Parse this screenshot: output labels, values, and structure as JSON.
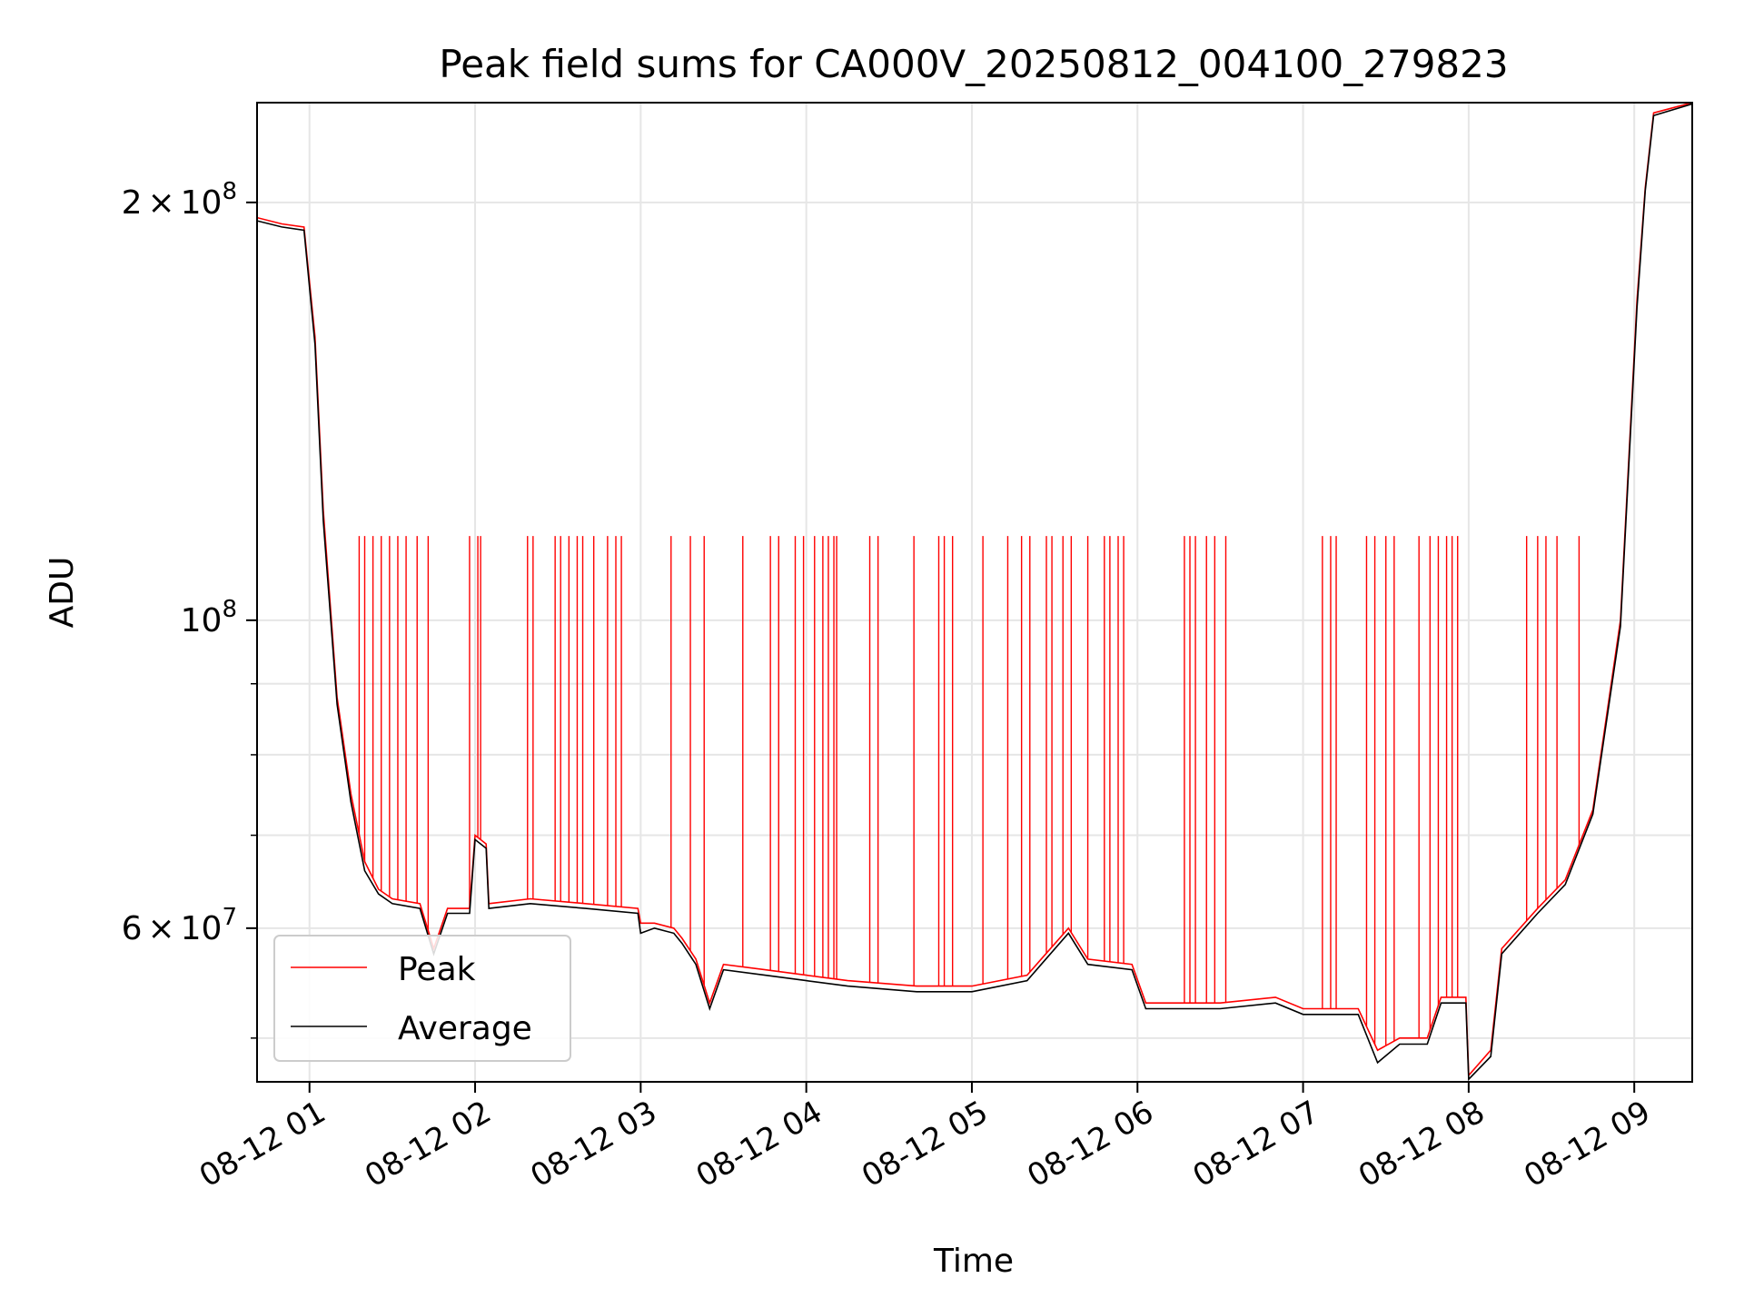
{
  "chart_data": {
    "type": "line",
    "title": "Peak field sums for CA000V_20250812_004100_279823",
    "xlabel": "Time",
    "ylabel": "ADU",
    "yscale": "log",
    "ylim": [
      46500000,
      236000000
    ],
    "xlim": [
      "2025-08-12 00:41",
      "2025-08-12 09:21"
    ],
    "grid": true,
    "legend_position": "lower-left",
    "x_ticks": [
      {
        "value": "2025-08-12 01:00",
        "label": "08-12 01"
      },
      {
        "value": "2025-08-12 02:00",
        "label": "08-12 02"
      },
      {
        "value": "2025-08-12 03:00",
        "label": "08-12 03"
      },
      {
        "value": "2025-08-12 04:00",
        "label": "08-12 04"
      },
      {
        "value": "2025-08-12 05:00",
        "label": "08-12 05"
      },
      {
        "value": "2025-08-12 06:00",
        "label": "08-12 06"
      },
      {
        "value": "2025-08-12 07:00",
        "label": "08-12 07"
      },
      {
        "value": "2025-08-12 08:00",
        "label": "08-12 08"
      },
      {
        "value": "2025-08-12 09:00",
        "label": "08-12 09"
      }
    ],
    "y_major_ticks": [
      {
        "value": 60000000,
        "mantissa": "6",
        "exponent": "7"
      },
      {
        "value": 100000000,
        "mantissa": "",
        "exponent": "8"
      },
      {
        "value": 200000000,
        "mantissa": "2",
        "exponent": "8"
      }
    ],
    "y_minor_ticks": [
      50000000,
      70000000,
      80000000,
      90000000
    ],
    "tick_base": "10",
    "tick_times": "×",
    "series": [
      {
        "name": "Peak",
        "color": "#ff0000",
        "points": [
          [
            "2025-08-12 00:41",
            195000000
          ],
          [
            "2025-08-12 00:50",
            193000000
          ],
          [
            "2025-08-12 00:58",
            192000000
          ],
          [
            "2025-08-12 01:02",
            160000000
          ],
          [
            "2025-08-12 01:05",
            120000000
          ],
          [
            "2025-08-12 01:10",
            88000000
          ],
          [
            "2025-08-12 01:15",
            75000000
          ],
          [
            "2025-08-12 01:20",
            67000000
          ],
          [
            "2025-08-12 01:25",
            64000000
          ],
          [
            "2025-08-12 01:30",
            63000000
          ],
          [
            "2025-08-12 01:40",
            62500000
          ],
          [
            "2025-08-12 01:45",
            58000000
          ],
          [
            "2025-08-12 01:50",
            62000000
          ],
          [
            "2025-08-12 01:58",
            62000000
          ],
          [
            "2025-08-12 02:00",
            70000000
          ],
          [
            "2025-08-12 02:04",
            69000000
          ],
          [
            "2025-08-12 02:05",
            62500000
          ],
          [
            "2025-08-12 02:20",
            63000000
          ],
          [
            "2025-08-12 02:40",
            62500000
          ],
          [
            "2025-08-12 02:59",
            62000000
          ],
          [
            "2025-08-12 03:00",
            60500000
          ],
          [
            "2025-08-12 03:05",
            60500000
          ],
          [
            "2025-08-12 03:12",
            60000000
          ],
          [
            "2025-08-12 03:15",
            59000000
          ],
          [
            "2025-08-12 03:20",
            57000000
          ],
          [
            "2025-08-12 03:25",
            53000000
          ],
          [
            "2025-08-12 03:30",
            56500000
          ],
          [
            "2025-08-12 03:45",
            56000000
          ],
          [
            "2025-08-12 04:00",
            55500000
          ],
          [
            "2025-08-12 04:15",
            55000000
          ],
          [
            "2025-08-12 04:40",
            54500000
          ],
          [
            "2025-08-12 05:00",
            54500000
          ],
          [
            "2025-08-12 05:20",
            55500000
          ],
          [
            "2025-08-12 05:35",
            60000000
          ],
          [
            "2025-08-12 05:42",
            57000000
          ],
          [
            "2025-08-12 05:58",
            56500000
          ],
          [
            "2025-08-12 06:03",
            53000000
          ],
          [
            "2025-08-12 06:30",
            53000000
          ],
          [
            "2025-08-12 06:50",
            53500000
          ],
          [
            "2025-08-12 07:00",
            52500000
          ],
          [
            "2025-08-12 07:20",
            52500000
          ],
          [
            "2025-08-12 07:27",
            49000000
          ],
          [
            "2025-08-12 07:35",
            50000000
          ],
          [
            "2025-08-12 07:45",
            50000000
          ],
          [
            "2025-08-12 07:50",
            53500000
          ],
          [
            "2025-08-12 07:59",
            53500000
          ],
          [
            "2025-08-12 08:00",
            47000000
          ],
          [
            "2025-08-12 08:08",
            49000000
          ],
          [
            "2025-08-12 08:12",
            58000000
          ],
          [
            "2025-08-12 08:25",
            62000000
          ],
          [
            "2025-08-12 08:35",
            65000000
          ],
          [
            "2025-08-12 08:45",
            73000000
          ],
          [
            "2025-08-12 08:55",
            100000000
          ],
          [
            "2025-08-12 09:01",
            170000000
          ],
          [
            "2025-08-12 09:04",
            205000000
          ],
          [
            "2025-08-12 09:07",
            232000000
          ],
          [
            "2025-08-12 09:21",
            236000000
          ]
        ],
        "spikes": {
          "value": 115000000,
          "times": [
            "2025-08-12 01:18",
            "2025-08-12 01:20",
            "2025-08-12 01:23",
            "2025-08-12 01:26",
            "2025-08-12 01:29",
            "2025-08-12 01:32",
            "2025-08-12 01:35",
            "2025-08-12 01:39",
            "2025-08-12 01:43",
            "2025-08-12 01:58",
            "2025-08-12 02:01",
            "2025-08-12 02:02",
            "2025-08-12 02:19",
            "2025-08-12 02:21",
            "2025-08-12 02:29",
            "2025-08-12 02:31",
            "2025-08-12 02:34",
            "2025-08-12 02:37",
            "2025-08-12 02:39",
            "2025-08-12 02:43",
            "2025-08-12 02:48",
            "2025-08-12 02:51",
            "2025-08-12 02:53",
            "2025-08-12 03:11",
            "2025-08-12 03:18",
            "2025-08-12 03:23",
            "2025-08-12 03:37",
            "2025-08-12 03:47",
            "2025-08-12 03:50",
            "2025-08-12 03:56",
            "2025-08-12 03:59",
            "2025-08-12 04:03",
            "2025-08-12 04:06",
            "2025-08-12 04:08",
            "2025-08-12 04:10",
            "2025-08-12 04:11",
            "2025-08-12 04:23",
            "2025-08-12 04:26",
            "2025-08-12 04:39",
            "2025-08-12 04:48",
            "2025-08-12 04:50",
            "2025-08-12 04:53",
            "2025-08-12 05:04",
            "2025-08-12 05:13",
            "2025-08-12 05:18",
            "2025-08-12 05:21",
            "2025-08-12 05:27",
            "2025-08-12 05:29",
            "2025-08-12 05:33",
            "2025-08-12 05:36",
            "2025-08-12 05:42",
            "2025-08-12 05:48",
            "2025-08-12 05:50",
            "2025-08-12 05:53",
            "2025-08-12 05:55",
            "2025-08-12 06:17",
            "2025-08-12 06:19",
            "2025-08-12 06:21",
            "2025-08-12 06:25",
            "2025-08-12 06:28",
            "2025-08-12 06:32",
            "2025-08-12 07:07",
            "2025-08-12 07:10",
            "2025-08-12 07:12",
            "2025-08-12 07:23",
            "2025-08-12 07:26",
            "2025-08-12 07:30",
            "2025-08-12 07:33",
            "2025-08-12 07:42",
            "2025-08-12 07:46",
            "2025-08-12 07:49",
            "2025-08-12 07:52",
            "2025-08-12 07:54",
            "2025-08-12 07:56",
            "2025-08-12 08:21",
            "2025-08-12 08:25",
            "2025-08-12 08:28",
            "2025-08-12 08:32",
            "2025-08-12 08:40"
          ]
        }
      },
      {
        "name": "Average",
        "color": "#000000",
        "points": [
          [
            "2025-08-12 00:41",
            194000000
          ],
          [
            "2025-08-12 00:50",
            192000000
          ],
          [
            "2025-08-12 00:58",
            191000000
          ],
          [
            "2025-08-12 01:02",
            158000000
          ],
          [
            "2025-08-12 01:05",
            118000000
          ],
          [
            "2025-08-12 01:10",
            87000000
          ],
          [
            "2025-08-12 01:15",
            74000000
          ],
          [
            "2025-08-12 01:20",
            66000000
          ],
          [
            "2025-08-12 01:25",
            63500000
          ],
          [
            "2025-08-12 01:30",
            62500000
          ],
          [
            "2025-08-12 01:40",
            62000000
          ],
          [
            "2025-08-12 01:45",
            57500000
          ],
          [
            "2025-08-12 01:50",
            61500000
          ],
          [
            "2025-08-12 01:58",
            61500000
          ],
          [
            "2025-08-12 02:00",
            69500000
          ],
          [
            "2025-08-12 02:04",
            68500000
          ],
          [
            "2025-08-12 02:05",
            62000000
          ],
          [
            "2025-08-12 02:20",
            62500000
          ],
          [
            "2025-08-12 02:40",
            62000000
          ],
          [
            "2025-08-12 02:59",
            61500000
          ],
          [
            "2025-08-12 03:00",
            59500000
          ],
          [
            "2025-08-12 03:05",
            60000000
          ],
          [
            "2025-08-12 03:12",
            59500000
          ],
          [
            "2025-08-12 03:15",
            58500000
          ],
          [
            "2025-08-12 03:20",
            56500000
          ],
          [
            "2025-08-12 03:25",
            52500000
          ],
          [
            "2025-08-12 03:30",
            56000000
          ],
          [
            "2025-08-12 03:45",
            55500000
          ],
          [
            "2025-08-12 04:00",
            55000000
          ],
          [
            "2025-08-12 04:15",
            54500000
          ],
          [
            "2025-08-12 04:40",
            54000000
          ],
          [
            "2025-08-12 05:00",
            54000000
          ],
          [
            "2025-08-12 05:20",
            55000000
          ],
          [
            "2025-08-12 05:35",
            59500000
          ],
          [
            "2025-08-12 05:42",
            56500000
          ],
          [
            "2025-08-12 05:58",
            56000000
          ],
          [
            "2025-08-12 06:03",
            52500000
          ],
          [
            "2025-08-12 06:30",
            52500000
          ],
          [
            "2025-08-12 06:50",
            53000000
          ],
          [
            "2025-08-12 07:00",
            52000000
          ],
          [
            "2025-08-12 07:20",
            52000000
          ],
          [
            "2025-08-12 07:27",
            48000000
          ],
          [
            "2025-08-12 07:35",
            49500000
          ],
          [
            "2025-08-12 07:45",
            49500000
          ],
          [
            "2025-08-12 07:50",
            53000000
          ],
          [
            "2025-08-12 07:59",
            53000000
          ],
          [
            "2025-08-12 08:00",
            46700000
          ],
          [
            "2025-08-12 08:08",
            48500000
          ],
          [
            "2025-08-12 08:12",
            57500000
          ],
          [
            "2025-08-12 08:25",
            61500000
          ],
          [
            "2025-08-12 08:35",
            64500000
          ],
          [
            "2025-08-12 08:45",
            72500000
          ],
          [
            "2025-08-12 08:55",
            99000000
          ],
          [
            "2025-08-12 09:01",
            168000000
          ],
          [
            "2025-08-12 09:04",
            204000000
          ],
          [
            "2025-08-12 09:07",
            231000000
          ],
          [
            "2025-08-12 09:21",
            235500000
          ]
        ]
      }
    ]
  }
}
